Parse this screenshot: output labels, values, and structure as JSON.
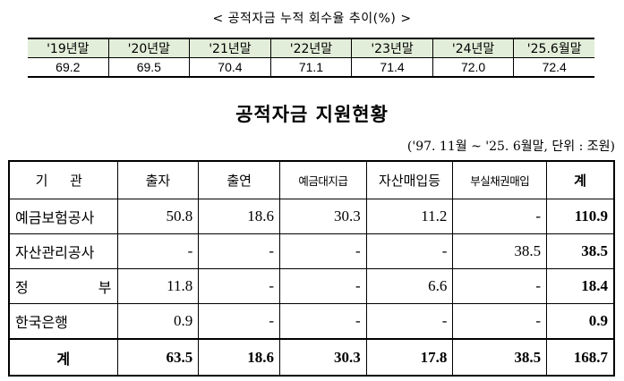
{
  "recovery_rate": {
    "caption": "< 공적자금 누적 회수율 추이(%) >",
    "years": [
      "'19년말",
      "'20년말",
      "'21년말",
      "'22년말",
      "'23년말",
      "'24년말",
      "'25.6월말"
    ],
    "values": [
      "69.2",
      "69.5",
      "70.4",
      "71.1",
      "71.4",
      "72.0",
      "72.4"
    ]
  },
  "support": {
    "title": "공적자금 지원현황",
    "unit_note": "('97. 11월 ~ '25. 6월말, 단위 : 조원)",
    "headers": [
      "기 관",
      "출자",
      "출연",
      "예금대지급",
      "자산매입등",
      "부실채권매입",
      "계"
    ],
    "rows": [
      {
        "org": "예금보험공사",
        "cells": [
          "50.8",
          "18.6",
          "30.3",
          "11.2",
          "-",
          "110.9"
        ]
      },
      {
        "org": "자산관리공사",
        "cells": [
          "-",
          "-",
          "-",
          "-",
          "38.5",
          "38.5"
        ]
      },
      {
        "org": "정 부",
        "cells": [
          "11.8",
          "-",
          "-",
          "6.6",
          "-",
          "18.4"
        ]
      },
      {
        "org": "한국은행",
        "cells": [
          "0.9",
          "-",
          "-",
          "-",
          "-",
          "0.9"
        ]
      }
    ],
    "total": {
      "org": "계",
      "cells": [
        "63.5",
        "18.6",
        "30.3",
        "17.8",
        "38.5",
        "168.7"
      ]
    }
  }
}
